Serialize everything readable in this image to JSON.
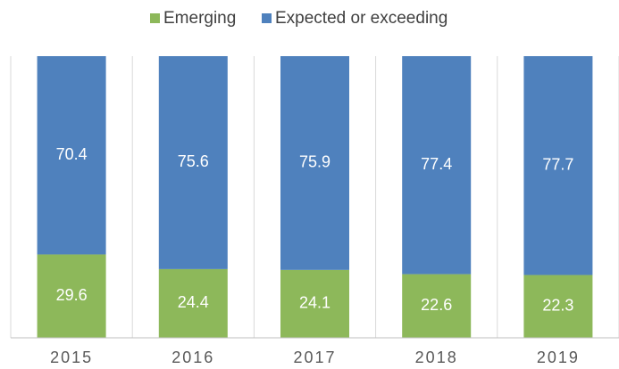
{
  "chart_data": {
    "type": "stacked-bar",
    "categories": [
      "2015",
      "2016",
      "2017",
      "2018",
      "2019"
    ],
    "series": [
      {
        "name": "Emerging",
        "color": "#8db85a",
        "values": [
          29.6,
          24.4,
          24.1,
          22.6,
          22.3
        ]
      },
      {
        "name": "Expected or exceeding",
        "color": "#4f81bd",
        "values": [
          70.4,
          75.6,
          75.9,
          77.4,
          77.7
        ]
      }
    ],
    "ylim": [
      0,
      100
    ]
  }
}
